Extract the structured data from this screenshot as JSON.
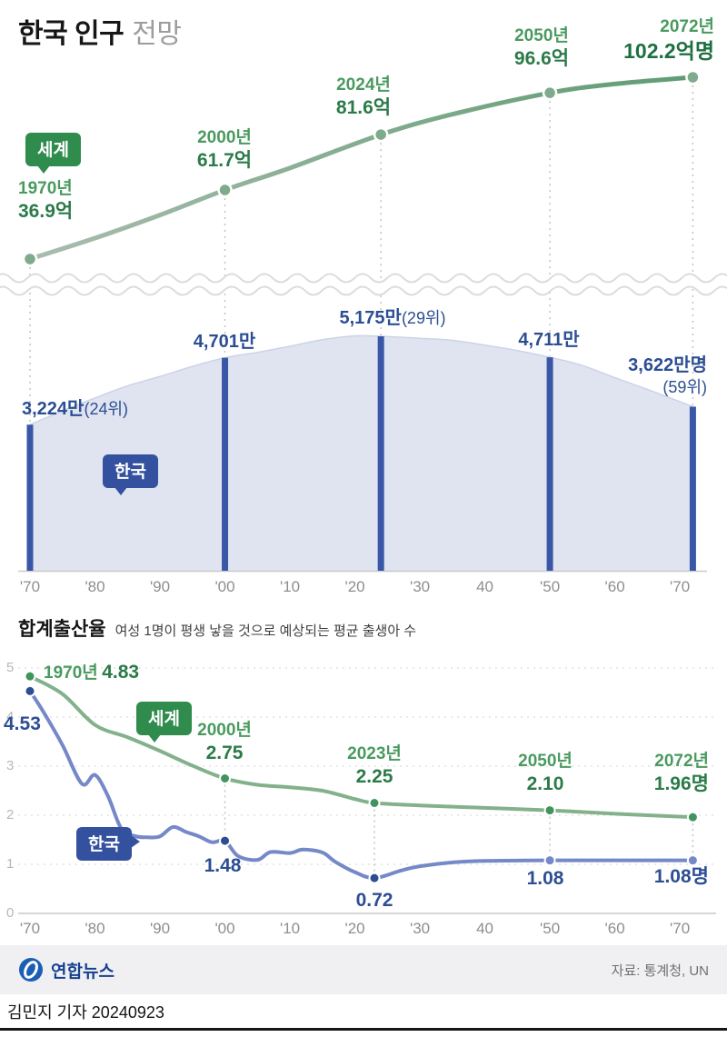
{
  "title": {
    "main": "한국 인구",
    "sub": "전망"
  },
  "colors": {
    "green_line_start": "#a9bcae",
    "green_line_end": "#5f9c72",
    "green_text": "#4a9a60",
    "green_value": "#2b7b49",
    "navy_text": "#2c4e93",
    "bar_blue": "#3a57a7",
    "area_fill": "#e0e4f1",
    "blue_line": "#7588c8",
    "badge_green": "#2f8c4d",
    "badge_navy": "#33519e"
  },
  "axis": {
    "x_ticks": [
      "'70",
      "'80",
      "'90",
      "'00",
      "'10",
      "'20",
      "'30",
      "40",
      "'50",
      "'60",
      "'70"
    ]
  },
  "chart_data": [
    {
      "type": "line",
      "name": "world-population",
      "legend": "세계",
      "unit": "억",
      "x": [
        1970,
        1980,
        1990,
        2000,
        2010,
        2024,
        2035,
        2050,
        2060,
        2072
      ],
      "values": [
        36.9,
        44.4,
        52.7,
        61.7,
        69.6,
        81.6,
        88.9,
        96.6,
        99.8,
        102.2
      ],
      "annotations": [
        {
          "year": 1970,
          "v": 36.9,
          "year_label": "1970년",
          "value_label": "36.9억"
        },
        {
          "year": 2000,
          "v": 61.7,
          "year_label": "2000년",
          "value_label": "61.7억"
        },
        {
          "year": 2024,
          "v": 81.6,
          "year_label": "2024년",
          "value_label": "81.6억"
        },
        {
          "year": 2050,
          "v": 96.6,
          "year_label": "2050년",
          "value_label": "96.6억"
        },
        {
          "year": 2072,
          "v": 102.2,
          "year_label": "2072년",
          "value_label": "102.2억명"
        }
      ]
    },
    {
      "type": "area",
      "name": "korea-population",
      "legend": "한국",
      "unit": "만",
      "x": [
        1970,
        1975,
        1980,
        1985,
        1990,
        1995,
        2000,
        2005,
        2010,
        2015,
        2020,
        2024,
        2030,
        2035,
        2040,
        2045,
        2050,
        2055,
        2060,
        2066,
        2072
      ],
      "values": [
        3224,
        3530,
        3812,
        4080,
        4287,
        4510,
        4701,
        4820,
        4955,
        5100,
        5184,
        5175,
        5130,
        5085,
        4980,
        4860,
        4711,
        4530,
        4262,
        3950,
        3622
      ],
      "annotations": [
        {
          "year": 1970,
          "v": 3224,
          "value_label": "3,224만",
          "rank_label": "(24위)"
        },
        {
          "year": 2000,
          "v": 4701,
          "value_label": "4,701만"
        },
        {
          "year": 2024,
          "v": 5175,
          "value_label": "5,175만",
          "rank_label": "(29위)"
        },
        {
          "year": 2050,
          "v": 4711,
          "value_label": "4,711만"
        },
        {
          "year": 2072,
          "v": 3622,
          "value_label": "3,622만명",
          "rank_label": "(59위)"
        }
      ]
    },
    {
      "type": "line",
      "name": "fertility-rate",
      "title": "합계출산율",
      "subtitle": "여성 1명이 평생 낳을 것으로 예상되는 평균 출생아 수",
      "ylim": [
        0,
        5
      ],
      "y_ticks": [
        "5",
        "4",
        "3",
        "2",
        "1",
        "0"
      ],
      "series": [
        {
          "name": "세계",
          "x": [
            1970,
            1975,
            1980,
            1985,
            1990,
            1995,
            2000,
            2005,
            2010,
            2015,
            2020,
            2023,
            2030,
            2040,
            2050,
            2060,
            2072
          ],
          "values": [
            4.83,
            4.47,
            3.84,
            3.59,
            3.31,
            3.01,
            2.75,
            2.62,
            2.57,
            2.5,
            2.33,
            2.25,
            2.2,
            2.15,
            2.1,
            2.03,
            1.96
          ],
          "annotations": [
            {
              "year": 1970,
              "v": 4.83,
              "year_label": "1970년",
              "value_label": "4.83"
            },
            {
              "year": 2000,
              "v": 2.75,
              "year_label": "2000년",
              "value_label": "2.75"
            },
            {
              "year": 2023,
              "v": 2.25,
              "year_label": "2023년",
              "value_label": "2.25"
            },
            {
              "year": 2050,
              "v": 2.1,
              "year_label": "2050년",
              "value_label": "2.10"
            },
            {
              "year": 2072,
              "v": 1.96,
              "year_label": "2072년",
              "value_label": "1.96명"
            }
          ]
        },
        {
          "name": "한국",
          "x": [
            1970,
            1972,
            1975,
            1978,
            1980,
            1982,
            1984,
            1986,
            1988,
            1990,
            1992,
            1994,
            1996,
            1998,
            2000,
            2002,
            2005,
            2007,
            2010,
            2012,
            2015,
            2017,
            2020,
            2023,
            2027,
            2030,
            2035,
            2040,
            2050,
            2060,
            2072
          ],
          "values": [
            4.53,
            4.12,
            3.43,
            2.64,
            2.82,
            2.39,
            1.74,
            1.58,
            1.55,
            1.57,
            1.76,
            1.66,
            1.57,
            1.45,
            1.48,
            1.17,
            1.09,
            1.25,
            1.23,
            1.3,
            1.24,
            1.05,
            0.84,
            0.72,
            0.87,
            0.96,
            1.04,
            1.07,
            1.08,
            1.08,
            1.08
          ],
          "annotations": [
            {
              "year": 1970,
              "v": 4.53,
              "value_label": "4.53"
            },
            {
              "year": 2000,
              "v": 1.48,
              "value_label": "1.48"
            },
            {
              "year": 2023,
              "v": 0.72,
              "value_label": "0.72"
            },
            {
              "year": 2050,
              "v": 1.08,
              "value_label": "1.08"
            },
            {
              "year": 2072,
              "v": 1.08,
              "value_label": "1.08명"
            }
          ]
        }
      ]
    }
  ],
  "footer": {
    "brand": "연합뉴스",
    "source": "자료: 통계청, UN",
    "byline": "김민지 기자 20240923"
  }
}
